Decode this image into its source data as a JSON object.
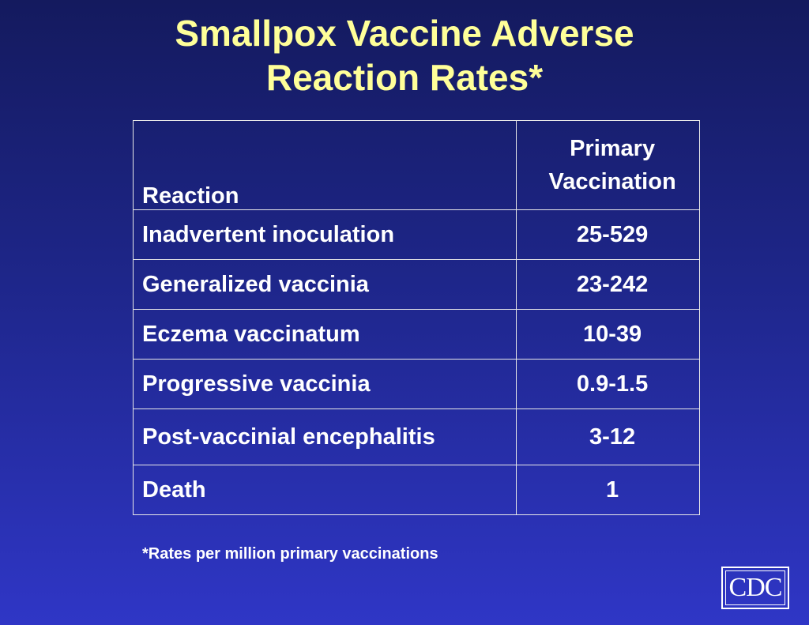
{
  "slide": {
    "title_line1": "Smallpox Vaccine Adverse",
    "title_line2": "Reaction Rates*",
    "table": {
      "header_reaction": "Reaction",
      "header_primary_line1": "Primary",
      "header_primary_line2": "Vaccination",
      "rows": [
        {
          "reaction": "Inadvertent inoculation",
          "rate": "25-529"
        },
        {
          "reaction": "Generalized vaccinia",
          "rate": "23-242"
        },
        {
          "reaction": "Eczema vaccinatum",
          "rate": "10-39"
        },
        {
          "reaction": "Progressive vaccinia",
          "rate": "0.9-1.5"
        },
        {
          "reaction": "Post-vaccinial encephalitis",
          "rate": "3-12"
        },
        {
          "reaction": "Death",
          "rate": "1"
        }
      ]
    },
    "footnote": "*Rates per million primary vaccinations",
    "logo_text": "CDC",
    "colors": {
      "title": "#ffff99",
      "text": "#ffffff",
      "background_top": "#141a5e",
      "background_bottom": "#2f36c6"
    }
  }
}
